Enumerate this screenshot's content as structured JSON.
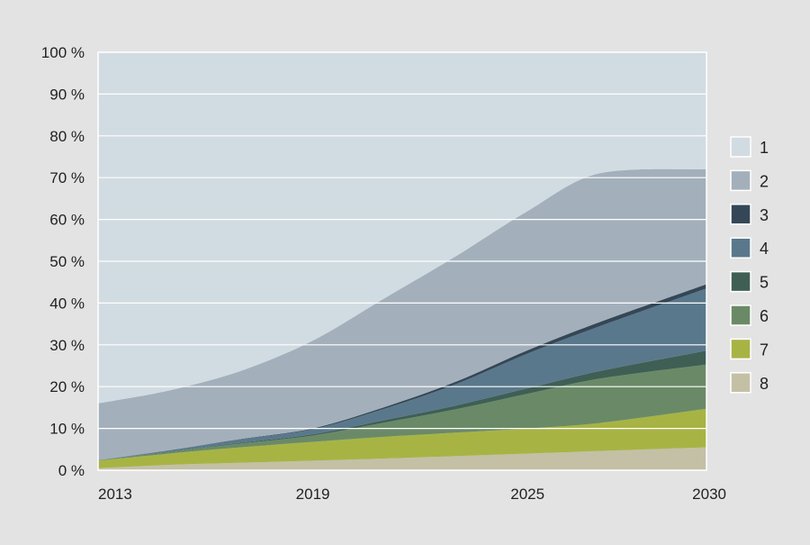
{
  "chart_data": {
    "type": "area",
    "stacked": true,
    "x": [
      2013,
      2015,
      2017,
      2019,
      2021,
      2023,
      2025,
      2027,
      2030
    ],
    "x_tick_labels": [
      "2013",
      "2019",
      "2025",
      "2030"
    ],
    "x_tick_values": [
      2013,
      2019,
      2025,
      2030
    ],
    "ylim": [
      0,
      100
    ],
    "y_tick_values": [
      0,
      10,
      20,
      30,
      40,
      50,
      60,
      70,
      80,
      90,
      100
    ],
    "y_tick_labels": [
      "0 %",
      "10 %",
      "20 %",
      "30 %",
      "40 %",
      "50 %",
      "60 %",
      "70 %",
      "80 %",
      "90 %",
      "100 %"
    ],
    "grid": true,
    "legend_position": "right",
    "series": [
      {
        "name": "8",
        "color": "#c3c0a6",
        "values": [
          0.5,
          1.3,
          1.8,
          2.3,
          2.8,
          3.4,
          4.0,
          4.6,
          5.5
        ]
      },
      {
        "name": "7",
        "color": "#a7b444",
        "values": [
          1.8,
          2.7,
          3.7,
          4.5,
          5.2,
          5.6,
          6.0,
          6.7,
          9.2
        ]
      },
      {
        "name": "6",
        "color": "#6a8a67",
        "values": [
          0.1,
          0.4,
          0.9,
          1.5,
          3.4,
          5.6,
          8.3,
          10.6,
          10.6
        ]
      },
      {
        "name": "5",
        "color": "#3f5f55",
        "values": [
          0.0,
          0.1,
          0.2,
          0.3,
          0.6,
          0.9,
          1.3,
          1.8,
          3.3
        ]
      },
      {
        "name": "4",
        "color": "#5a788c",
        "values": [
          0.0,
          0.3,
          0.8,
          1.2,
          2.7,
          5.1,
          8.3,
          10.7,
          14.9
        ]
      },
      {
        "name": "3",
        "color": "#354756",
        "values": [
          0.0,
          0.0,
          0.1,
          0.2,
          0.4,
          0.6,
          0.8,
          1.0,
          1.0
        ]
      },
      {
        "name": "2",
        "color": "#a3b0bb",
        "values": [
          13.6,
          14.3,
          16.3,
          21.0,
          26.0,
          30.0,
          33.3,
          35.6,
          27.5
        ]
      },
      {
        "name": "1",
        "color": "#d1dce2",
        "values": [
          84.0,
          80.9,
          76.2,
          69.0,
          58.9,
          48.8,
          38.0,
          29.0,
          28.0
        ]
      }
    ],
    "legend": [
      "1",
      "2",
      "3",
      "4",
      "5",
      "6",
      "7",
      "8"
    ]
  }
}
